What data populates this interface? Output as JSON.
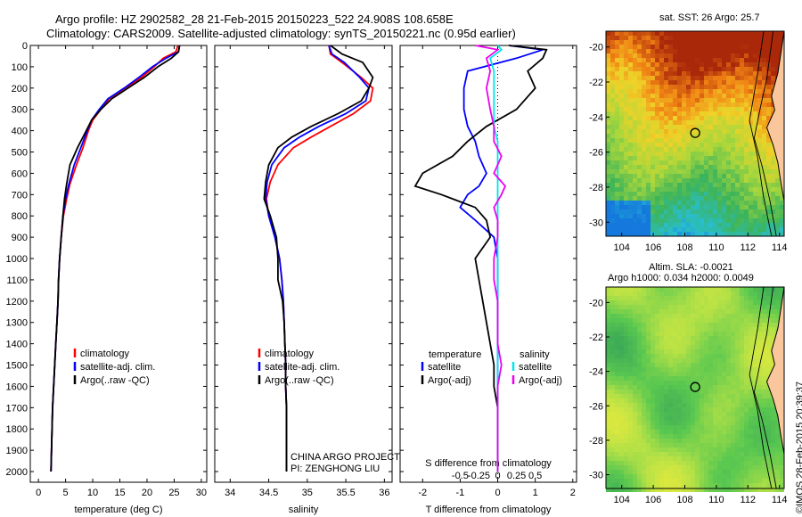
{
  "header": {
    "line1": "Argo profile: HZ 2902582_28 21-Feb-2015 20150223_522 24.908S 108.658E",
    "line2": "Climatology: CARS2009. Satellite-adjusted climatology: synTS_20150221.nc (0.95d earlier)"
  },
  "map_sst": {
    "title": "sat. SST: 26 Argo: 25.7",
    "x_ticks": [
      "104",
      "106",
      "108",
      "110",
      "112",
      "114"
    ],
    "y_ticks": [
      "-20",
      "-22",
      "-24",
      "-26",
      "-28",
      "-30"
    ]
  },
  "map_sla": {
    "title1": "Altim. SLA: -0.0021",
    "title2": "Argo h1000: 0.034 h2000: 0.0049",
    "x_ticks": [
      "104",
      "106",
      "108",
      "110",
      "112",
      "114"
    ],
    "y_ticks": [
      "-20",
      "-22",
      "-24",
      "-26",
      "-28",
      "-30"
    ]
  },
  "stamp": "©IMOS 28-Feb-2015 20:39:37",
  "colors": {
    "climatology": "#ff0000",
    "satellite": "#0000ff",
    "argo": "#000000",
    "sat_s": "#00e5ee",
    "argo_s": "#ee00ee",
    "land": "#f9c79b"
  },
  "chart_data": [
    {
      "type": "line",
      "panel": "temperature",
      "xlabel": "temperature (deg C)",
      "ylabel": "",
      "xlim": [
        -1.5,
        31
      ],
      "ylim": [
        2050,
        0
      ],
      "x_ticks": [
        0,
        5,
        10,
        15,
        20,
        25,
        30
      ],
      "x_tick_labels": [
        "0",
        "5",
        "10",
        "15",
        "20",
        "25",
        "30"
      ],
      "y_ticks": [
        0,
        100,
        200,
        300,
        400,
        500,
        600,
        700,
        800,
        900,
        1000,
        1100,
        1200,
        1300,
        1400,
        1500,
        1600,
        1700,
        1800,
        1900,
        2000
      ],
      "y_tick_labels": [
        "0",
        "100",
        "200",
        "300",
        "400",
        "500",
        "600",
        "700",
        "800",
        "900",
        "1000",
        "1100",
        "1200",
        "1300",
        "1400",
        "1500",
        "1600",
        "1700",
        "1800",
        "1900",
        "2000"
      ],
      "legend": [
        "climatology",
        "satellite-adj. clim.",
        "Argo(..raw -QC)"
      ],
      "legend_position": "lower-center",
      "series": [
        {
          "name": "climatology",
          "color": "#ff0000",
          "x": [
            25.7,
            25.3,
            23.0,
            21.3,
            19.0,
            16.0,
            13.0,
            11.5,
            10.0,
            9.2,
            8.2,
            7.0,
            5.8,
            5.2,
            4.6,
            4.2,
            3.9,
            3.7,
            3.6,
            3.4,
            3.2,
            3.0,
            2.8,
            2.6,
            2.5,
            2.4,
            2.3
          ],
          "y": [
            0,
            30,
            60,
            100,
            150,
            200,
            250,
            300,
            350,
            400,
            480,
            560,
            650,
            720,
            800,
            900,
            1000,
            1100,
            1200,
            1300,
            1400,
            1500,
            1600,
            1700,
            1800,
            1900,
            2000
          ]
        },
        {
          "name": "satellite-adj. clim.",
          "color": "#0000ff",
          "x": [
            26.0,
            25.8,
            23.5,
            21.0,
            18.5,
            15.8,
            12.8,
            11.2,
            9.8,
            9.0,
            7.8,
            6.6,
            5.6,
            5.0,
            4.5,
            4.2,
            3.9,
            3.7,
            3.6,
            3.4,
            3.2,
            3.0,
            2.8,
            2.6,
            2.5,
            2.4,
            2.3
          ],
          "y": [
            0,
            30,
            60,
            100,
            150,
            200,
            250,
            300,
            350,
            400,
            480,
            560,
            650,
            720,
            800,
            900,
            1000,
            1100,
            1200,
            1300,
            1400,
            1500,
            1600,
            1700,
            1800,
            1900,
            2000
          ]
        },
        {
          "name": "Argo(..raw -QC)",
          "color": "#000000",
          "x": [
            26.0,
            25.8,
            24.5,
            22.0,
            19.5,
            16.5,
            13.5,
            11.5,
            9.8,
            8.8,
            7.2,
            5.8,
            5.2,
            4.8,
            4.5,
            4.2,
            3.9,
            3.7,
            3.6,
            3.4,
            3.2,
            3.0,
            2.8,
            2.6,
            2.5,
            2.4,
            2.3
          ],
          "y": [
            0,
            30,
            60,
            100,
            150,
            200,
            250,
            300,
            350,
            400,
            480,
            560,
            650,
            720,
            800,
            900,
            1000,
            1100,
            1200,
            1300,
            1400,
            1500,
            1600,
            1700,
            1800,
            1900,
            2000
          ]
        }
      ]
    },
    {
      "type": "line",
      "panel": "salinity",
      "xlabel": "salinity",
      "ylabel": "",
      "xlim": [
        33.8,
        36.1
      ],
      "ylim": [
        2050,
        0
      ],
      "x_ticks": [
        34,
        34.5,
        35,
        35.5,
        36
      ],
      "x_tick_labels": [
        "34",
        "34.5",
        "35",
        "35.5",
        "36"
      ],
      "legend": [
        "climatology",
        "satellite-adj. clim.",
        "Argo(..raw -QC)"
      ],
      "legend_position": "lower-center",
      "annotation": [
        "CHINA ARGO PROJECT",
        "PI: ZENGHONG LIU"
      ],
      "series": [
        {
          "name": "climatology",
          "color": "#ff0000",
          "x": [
            35.28,
            35.3,
            35.45,
            35.7,
            35.85,
            35.82,
            35.6,
            35.3,
            35.05,
            34.82,
            34.62,
            34.52,
            34.47,
            34.5,
            34.58,
            34.64,
            34.67,
            34.69,
            34.7,
            34.71,
            34.72,
            34.72,
            34.73,
            34.73,
            34.73,
            34.73
          ],
          "y": [
            0,
            40,
            80,
            150,
            200,
            260,
            320,
            380,
            430,
            480,
            560,
            640,
            720,
            800,
            900,
            1000,
            1100,
            1200,
            1300,
            1400,
            1500,
            1600,
            1700,
            1800,
            1900,
            2000
          ]
        },
        {
          "name": "satellite-adj. clim.",
          "color": "#0000ff",
          "x": [
            35.28,
            35.32,
            35.48,
            35.68,
            35.8,
            35.76,
            35.5,
            35.15,
            34.9,
            34.7,
            34.54,
            34.48,
            34.46,
            34.5,
            34.58,
            34.64,
            34.67,
            34.69,
            34.7,
            34.71,
            34.72,
            34.72,
            34.73,
            34.73,
            34.73,
            34.73
          ],
          "y": [
            0,
            40,
            80,
            150,
            200,
            260,
            320,
            380,
            430,
            480,
            560,
            640,
            720,
            800,
            900,
            1000,
            1100,
            1200,
            1300,
            1400,
            1500,
            1600,
            1700,
            1800,
            1900,
            2000
          ]
        },
        {
          "name": "Argo(..raw -QC)",
          "color": "#000000",
          "x": [
            35.3,
            35.45,
            35.72,
            35.85,
            35.8,
            35.7,
            35.4,
            35.05,
            34.8,
            34.62,
            34.5,
            34.46,
            34.44,
            34.52,
            34.6,
            34.62,
            34.62,
            34.68,
            34.7,
            34.71,
            34.72,
            34.72,
            34.73,
            34.73,
            34.73,
            34.73
          ],
          "y": [
            0,
            40,
            80,
            150,
            200,
            260,
            320,
            380,
            430,
            480,
            560,
            640,
            720,
            800,
            900,
            1000,
            1100,
            1200,
            1300,
            1400,
            1500,
            1600,
            1700,
            1800,
            1900,
            2000
          ]
        }
      ]
    },
    {
      "type": "line",
      "panel": "difference from climatology",
      "xlabel": "T difference from climatology",
      "xlabel2": "S difference from climatology",
      "xlim": [
        -2.6,
        2.1
      ],
      "ylim": [
        2050,
        0
      ],
      "x_ticks": [
        -2,
        -1,
        0,
        1,
        2
      ],
      "x_tick_labels": [
        "-2",
        "-1",
        "0",
        "1",
        "2"
      ],
      "x2_tick_labels": [
        "-0.5",
        "-0.25",
        "0",
        "0.25",
        "0.5"
      ],
      "legend_titles": [
        "temperature",
        "salinity"
      ],
      "legend": [
        "satellite",
        "Argo(-adj)",
        "satellite",
        "Argo(-adj)"
      ],
      "legend_position": "lower-center",
      "series": [
        {
          "name": "temperature satellite",
          "color": "#0000ff",
          "x": [
            0.3,
            1.2,
            0.5,
            -0.8,
            -0.9,
            -0.9,
            -0.8,
            -0.6,
            -0.5,
            -0.3,
            -0.5,
            -0.8,
            -1.0,
            -0.6,
            -0.1,
            0.0,
            0.0,
            0.0,
            0.0,
            0.0,
            0.0,
            0.0,
            0.0,
            0.0,
            0.0,
            0.0
          ],
          "y": [
            0,
            20,
            60,
            120,
            200,
            300,
            380,
            450,
            520,
            600,
            660,
            700,
            760,
            820,
            900,
            1000,
            1100,
            1200,
            1300,
            1400,
            1500,
            1600,
            1700,
            1800,
            1900,
            2000
          ]
        },
        {
          "name": "temperature Argo(-adj)",
          "color": "#000000",
          "x": [
            0.3,
            1.3,
            1.2,
            0.8,
            1.0,
            0.5,
            -0.3,
            -0.8,
            -1.2,
            -2.0,
            -2.2,
            -1.5,
            -0.6,
            -0.3,
            -0.2,
            -0.6,
            -0.5,
            -0.4,
            -0.3,
            -0.2,
            -0.1,
            -0.1,
            0.0,
            0.0,
            0.0,
            0.0
          ],
          "y": [
            0,
            20,
            60,
            120,
            200,
            300,
            380,
            450,
            520,
            600,
            660,
            700,
            760,
            820,
            900,
            1000,
            1100,
            1200,
            1300,
            1400,
            1500,
            1600,
            1700,
            1800,
            1900,
            2000
          ]
        },
        {
          "name": "salinity satellite",
          "color": "#00e5ee",
          "x": [
            0.0,
            0.1,
            -0.2,
            -0.1,
            -0.1,
            -0.1,
            -0.1,
            0.0,
            0.0,
            0.0,
            0.0,
            0.0,
            0.0,
            0.0,
            0.0,
            0.0,
            0.0,
            0.0,
            0.0,
            0.0,
            0.0,
            0.0,
            0.0,
            0.0,
            0.0,
            0.0
          ],
          "y": [
            0,
            20,
            60,
            120,
            200,
            300,
            380,
            450,
            520,
            600,
            660,
            700,
            760,
            820,
            900,
            1000,
            1100,
            1200,
            1300,
            1400,
            1500,
            1600,
            1700,
            1800,
            1900,
            2000
          ]
        },
        {
          "name": "salinity Argo(-adj)",
          "color": "#ee00ee",
          "x": [
            -0.6,
            0.0,
            -0.3,
            -0.2,
            -0.3,
            -0.2,
            -0.1,
            -0.1,
            0.1,
            -0.1,
            0.2,
            0.1,
            -0.1,
            0.0,
            0.0,
            -0.1,
            -0.1,
            0.0,
            0.0,
            0.0,
            0.1,
            0.0,
            0.0,
            0.0,
            0.0,
            0.0
          ],
          "y": [
            0,
            20,
            60,
            120,
            200,
            300,
            380,
            450,
            520,
            600,
            660,
            700,
            760,
            820,
            900,
            1000,
            1100,
            1200,
            1300,
            1400,
            1500,
            1600,
            1700,
            1800,
            1900,
            2000
          ]
        }
      ]
    }
  ]
}
